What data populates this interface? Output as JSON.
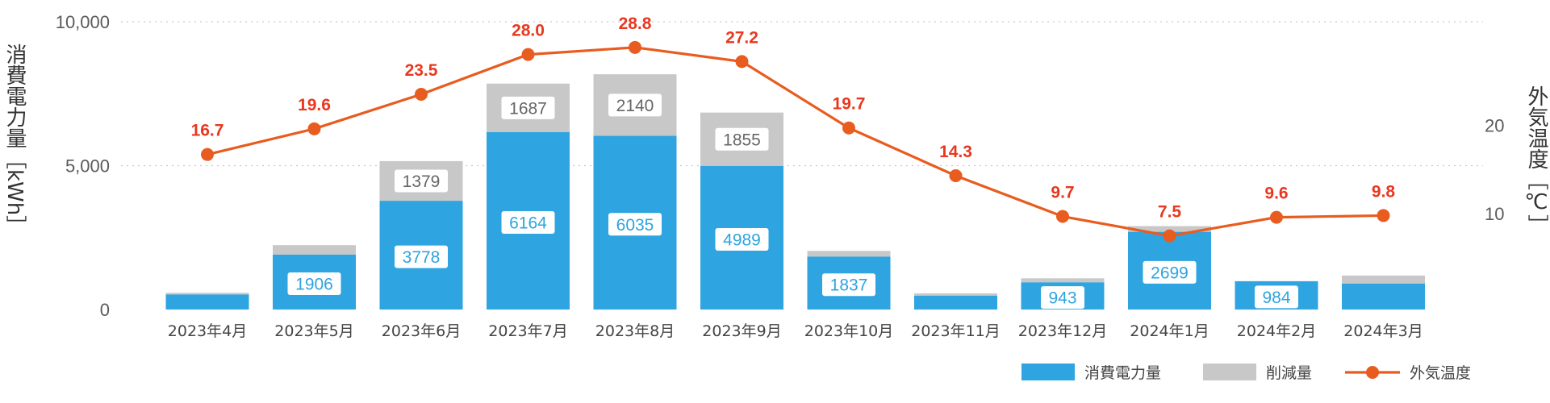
{
  "chart_data": {
    "type": "bar",
    "categories": [
      "2023年4月",
      "2023年5月",
      "2023年6月",
      "2023年7月",
      "2023年8月",
      "2023年9月",
      "2023年10月",
      "2023年11月",
      "2023年12月",
      "2024年1月",
      "2024年2月",
      "2024年3月"
    ],
    "series": [
      {
        "name": "消費電力量",
        "kind": "stacked-bar",
        "axis": "left",
        "color": "#2ea4e0",
        "values": [
          520,
          1906,
          3778,
          6164,
          6035,
          4989,
          1837,
          480,
          943,
          2699,
          984,
          900
        ],
        "labels": [
          "",
          "1906",
          "3778",
          "6164",
          "6035",
          "4989",
          "1837",
          "",
          "943",
          "2699",
          "984",
          ""
        ]
      },
      {
        "name": "削減量",
        "kind": "stacked-bar",
        "axis": "left",
        "color": "#c8c8c8",
        "values": [
          60,
          330,
          1379,
          1687,
          2140,
          1855,
          200,
          80,
          140,
          200,
          0,
          280
        ],
        "labels": [
          "",
          "",
          "1379",
          "1687",
          "2140",
          "1855",
          "",
          "",
          "",
          "",
          "",
          ""
        ]
      },
      {
        "name": "外気温度",
        "kind": "line",
        "axis": "right",
        "color": "#e85c1f",
        "values": [
          16.7,
          19.6,
          23.5,
          28.0,
          28.8,
          27.2,
          19.7,
          14.3,
          9.7,
          7.5,
          9.6,
          9.8
        ],
        "labels": [
          "16.7",
          "19.6",
          "23.5",
          "28.0",
          "28.8",
          "27.2",
          "19.7",
          "14.3",
          "9.7",
          "7.5",
          "9.6",
          "9.8"
        ]
      }
    ],
    "yAxisLeft": {
      "label": "消費電力量［kWh］",
      "ticks": [
        "0",
        "5,000",
        "10,000"
      ],
      "range": [
        0,
        10000
      ]
    },
    "yAxisRight": {
      "label": "外気温度［℃］",
      "ticks": [
        "10",
        "20"
      ],
      "tickValues": [
        10,
        20
      ],
      "range": [
        -0.82,
        31.7
      ]
    },
    "grid": true,
    "legend": {
      "position": "bottom-right",
      "items": [
        {
          "label": "消費電力量",
          "marker": "bar",
          "color": "#2ea4e0"
        },
        {
          "label": "削減量",
          "marker": "bar",
          "color": "#c8c8c8"
        },
        {
          "label": "外気温度",
          "marker": "line-dot",
          "color": "#e85c1f"
        }
      ]
    }
  }
}
